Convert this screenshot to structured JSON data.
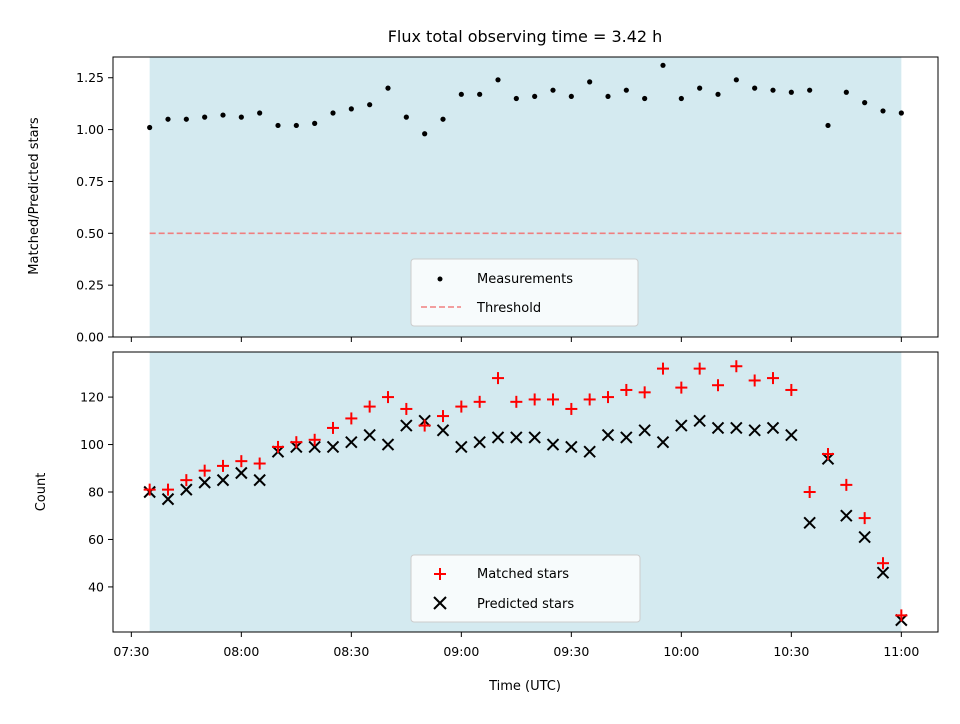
{
  "chart_data": [
    {
      "type": "scatter",
      "title": "Flux total observing time = 3.42 h",
      "ylabel": "Matched/Predicted stars",
      "xlabel": "",
      "xlim": [
        "07:25",
        "11:10"
      ],
      "ylim": [
        0,
        1.35
      ],
      "yticks": [
        "0.00",
        "0.25",
        "0.50",
        "0.75",
        "1.00",
        "1.25"
      ],
      "shaded_span": [
        "07:35",
        "11:00"
      ],
      "shade_color": "#d4eaf0",
      "threshold": 0.5,
      "threshold_color": "#f07f7f",
      "legend_position": "lower center",
      "legend": [
        "Measurements",
        "Threshold"
      ],
      "series": [
        {
          "name": "Measurements",
          "x": [
            "07:35",
            "07:40",
            "07:45",
            "07:50",
            "07:55",
            "08:00",
            "08:05",
            "08:10",
            "08:15",
            "08:20",
            "08:25",
            "08:30",
            "08:35",
            "08:40",
            "08:45",
            "08:50",
            "08:55",
            "09:00",
            "09:05",
            "09:10",
            "09:15",
            "09:20",
            "09:25",
            "09:30",
            "09:35",
            "09:40",
            "09:45",
            "09:50",
            "09:55",
            "10:00",
            "10:05",
            "10:10",
            "10:15",
            "10:20",
            "10:25",
            "10:30",
            "10:35",
            "10:40",
            "10:45",
            "10:50",
            "10:55",
            "11:00"
          ],
          "values": [
            1.01,
            1.05,
            1.05,
            1.06,
            1.07,
            1.06,
            1.08,
            1.02,
            1.02,
            1.03,
            1.08,
            1.1,
            1.12,
            1.2,
            1.06,
            0.98,
            1.05,
            1.17,
            1.17,
            1.24,
            1.15,
            1.16,
            1.19,
            1.16,
            1.23,
            1.16,
            1.19,
            1.15,
            1.31,
            1.15,
            1.2,
            1.17,
            1.24,
            1.2,
            1.19,
            1.18,
            1.19,
            1.02,
            1.18,
            1.13,
            1.09,
            1.08
          ]
        }
      ]
    },
    {
      "type": "scatter",
      "title": "",
      "ylabel": "Count",
      "xlabel": "Time (UTC)",
      "xlim": [
        "07:25",
        "11:10"
      ],
      "ylim": [
        21,
        139
      ],
      "yticks": [
        "40",
        "60",
        "80",
        "100",
        "120"
      ],
      "xticks": [
        "07:30",
        "08:00",
        "08:30",
        "09:00",
        "09:30",
        "10:00",
        "10:30",
        "11:00"
      ],
      "shaded_span": [
        "07:35",
        "11:00"
      ],
      "legend_position": "lower center",
      "legend": [
        "Matched stars",
        "Predicted stars"
      ],
      "x": [
        "07:35",
        "07:40",
        "07:45",
        "07:50",
        "07:55",
        "08:00",
        "08:05",
        "08:10",
        "08:15",
        "08:20",
        "08:25",
        "08:30",
        "08:35",
        "08:40",
        "08:45",
        "08:50",
        "08:55",
        "09:00",
        "09:05",
        "09:10",
        "09:15",
        "09:20",
        "09:25",
        "09:30",
        "09:35",
        "09:40",
        "09:45",
        "09:50",
        "09:55",
        "10:00",
        "10:05",
        "10:10",
        "10:15",
        "10:20",
        "10:25",
        "10:30",
        "10:35",
        "10:40",
        "10:45",
        "10:50",
        "10:55",
        "11:00"
      ],
      "series": [
        {
          "name": "Matched stars",
          "marker": "+",
          "color": "#ff0000",
          "values": [
            81,
            81,
            85,
            89,
            91,
            93,
            92,
            99,
            101,
            102,
            107,
            111,
            116,
            120,
            115,
            108,
            112,
            116,
            118,
            128,
            118,
            119,
            119,
            115,
            119,
            120,
            123,
            122,
            132,
            124,
            132,
            125,
            133,
            127,
            128,
            123,
            80,
            96,
            83,
            69,
            50,
            28
          ]
        },
        {
          "name": "Predicted stars",
          "marker": "x",
          "color": "#000000",
          "values": [
            80,
            77,
            81,
            84,
            85,
            88,
            85,
            97,
            99,
            99,
            99,
            101,
            104,
            100,
            108,
            110,
            106,
            99,
            101,
            103,
            103,
            103,
            100,
            99,
            97,
            104,
            103,
            106,
            101,
            108,
            110,
            107,
            107,
            106,
            107,
            104,
            67,
            94,
            70,
            61,
            46,
            26
          ]
        }
      ]
    }
  ]
}
